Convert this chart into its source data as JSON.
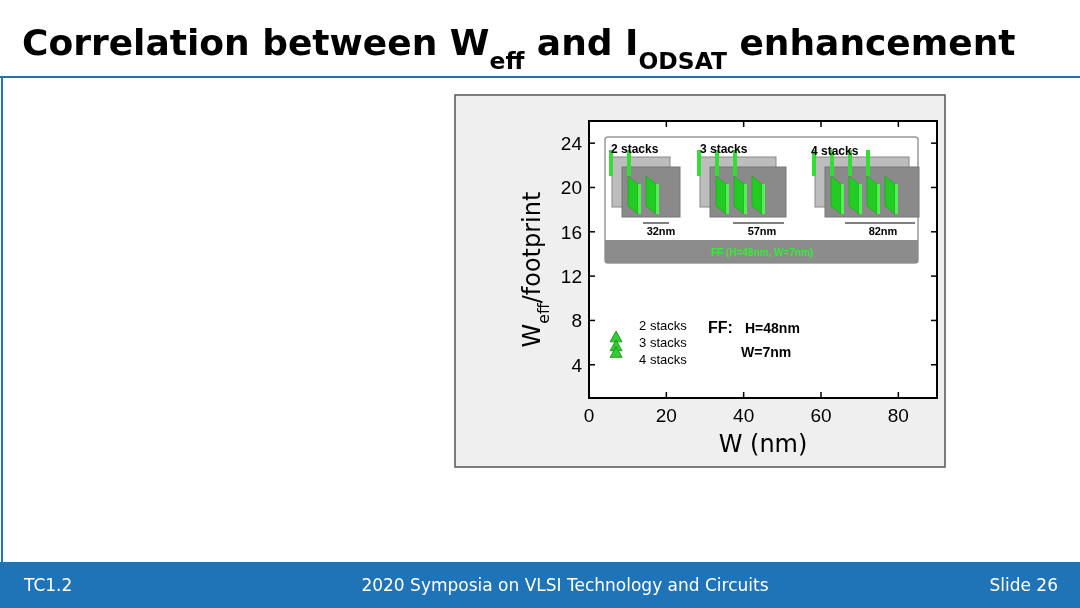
{
  "chart_data": {
    "type": "scatter",
    "title": "Correlation between W$_{eff}$ and I$_{ODSAT}$ enhancement",
    "xlabel": "W (nm)",
    "ylabel": "W$_{eff}$/footprint",
    "xlim": [
      0,
      90
    ],
    "xticks": [
      0,
      20,
      40,
      60,
      80
    ],
    "ylim": [
      1,
      26
    ],
    "yticks": [
      4,
      8,
      12,
      16,
      20,
      24
    ],
    "marker": "triangle",
    "grid": false,
    "x": [
      7
    ],
    "series": [
      {
        "name": "2 stacks",
        "color": "#33cc33",
        "values": [
          6.5
        ]
      },
      {
        "name": "3 stacks",
        "color": "#33cc33",
        "values": [
          5.7
        ]
      },
      {
        "name": "4 stacks",
        "color": "#33cc33",
        "values": [
          5.1
        ]
      }
    ],
    "annotations": [
      "2 stacks",
      "3 stacks",
      "4 stacks",
      "32nm",
      "57nm",
      "82nm",
      "FF (H=48nm, W=7nm)",
      "FF:",
      "H=48nm",
      "W=7nm",
      "TC1.2",
      "2020 Symposia on VLSI Technology and Circuits",
      "Slide 26"
    ]
  }
}
